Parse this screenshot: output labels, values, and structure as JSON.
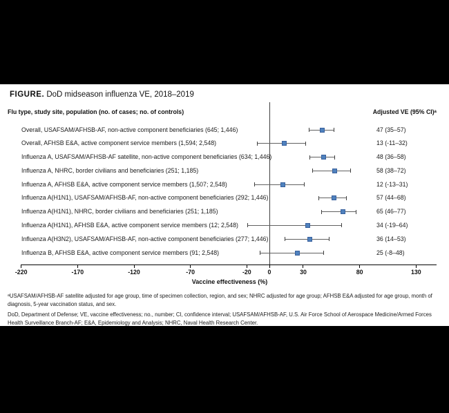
{
  "figure": {
    "title_prefix": "FIGURE.",
    "title_text": "DoD midseason influenza VE, 2018–2019",
    "left_column_header": "Flu type, study site, population (no. of cases; no. of controls)",
    "right_column_header": "Adjusted VE (95% CI)ᵃ"
  },
  "chart_data": {
    "type": "forest",
    "title": "DoD midseason influenza VE, 2018–2019",
    "xlabel": "Vaccine effectiveness (%)",
    "x_axis": {
      "ticks": [
        -220,
        -170,
        -120,
        -70,
        -20,
        0,
        30,
        80,
        130
      ],
      "min": -220,
      "max": 148,
      "reference_line": 0
    },
    "rows": [
      {
        "label": "Overall, USAFSAM/AFHSB-AF, non-active component beneficiaries (645; 1,446)",
        "ve": 47,
        "ci_low": 35,
        "ci_high": 57,
        "value_text": "47 (35–57)"
      },
      {
        "label": "Overall, AFHSB E&A, active component service members (1,594; 2,548)",
        "ve": 13,
        "ci_low": -11,
        "ci_high": 32,
        "value_text": "13 (-11–32)"
      },
      {
        "label": "Influenza A, USAFSAM/AFHSB-AF satellite, non-active component beneficiaries (634; 1,446)",
        "ve": 48,
        "ci_low": 36,
        "ci_high": 58,
        "value_text": "48 (36–58)"
      },
      {
        "label": "Influenza A, NHRC, border civilians and beneficiaries (251; 1,185)",
        "ve": 58,
        "ci_low": 38,
        "ci_high": 72,
        "value_text": "58 (38–72)"
      },
      {
        "label": "Influenza A, AFHSB E&A, active component service members (1,507; 2,548)",
        "ve": 12,
        "ci_low": -13,
        "ci_high": 31,
        "value_text": "12 (-13–31)"
      },
      {
        "label": "Influenza A(H1N1), USAFSAM/AFHSB-AF, non-active component beneficiaries (292; 1,446)",
        "ve": 57,
        "ci_low": 44,
        "ci_high": 68,
        "value_text": "57 (44–68)"
      },
      {
        "label": "Influenza A(H1N1), NHRC, border civilians and beneficiaries (251; 1,185)",
        "ve": 65,
        "ci_low": 46,
        "ci_high": 77,
        "value_text": "65 (46–77)"
      },
      {
        "label": "Influenza A(H1N1), AFHSB E&A, active component service members (12; 2,548)",
        "ve": 34,
        "ci_low": -19,
        "ci_high": 64,
        "value_text": "34 (-19–64)"
      },
      {
        "label": "Influenza A(H3N2), USAFSAM/AFHSB-AF, non-active component beneficiaries (277; 1,446)",
        "ve": 36,
        "ci_low": 14,
        "ci_high": 53,
        "value_text": "36 (14–53)"
      },
      {
        "label": "Influenza B, AFHSB E&A, active component service members (91; 2,548)",
        "ve": 25,
        "ci_low": -8,
        "ci_high": 48,
        "value_text": "25 (-8–48)"
      }
    ],
    "colors": {
      "marker": "#4f81bd",
      "marker_border": "#38609c",
      "whisker": "#606060",
      "axis": "#000000"
    },
    "legend_position": "none",
    "grid": false
  },
  "footnotes": [
    "ᵃUSAFSAM/AFHSB-AF satellite adjusted for age group, time of specimen collection, region, and sex; NHRC adjusted for age group; AFHSB E&A adjusted for age group, month of diagnosis, 5-year vaccination status, and sex.",
    "DoD, Department of Defense; VE, vaccine effectiveness; no., number; CI, confidence interval; USAFSAM/AFHSB-AF, U.S. Air Force School of Aerospace Medicine/Armed Forces Health Surveillance Branch-AF; E&A, Epidemiology and Analysis; NHRC, Naval Health Research Center."
  ]
}
